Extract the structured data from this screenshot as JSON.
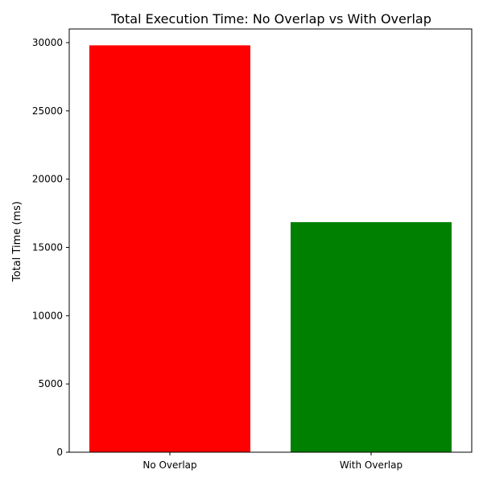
{
  "chart_data": {
    "type": "bar",
    "title": "Total Execution Time: No Overlap vs With Overlap",
    "xlabel": "",
    "ylabel": "Total Time (ms)",
    "categories": [
      "No Overlap",
      "With Overlap"
    ],
    "values": [
      29800,
      16850
    ],
    "colors": [
      "#ff0000",
      "#008000"
    ],
    "ylim": [
      0,
      31000
    ],
    "yticks": [
      0,
      5000,
      10000,
      15000,
      20000,
      25000,
      30000
    ],
    "grid": false,
    "legend": "none"
  }
}
